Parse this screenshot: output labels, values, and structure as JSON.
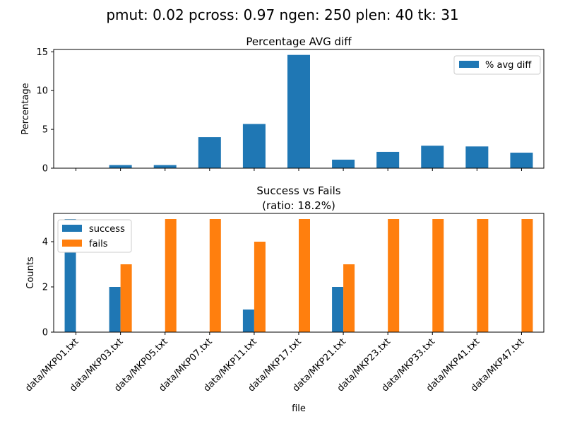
{
  "figure": {
    "suptitle": "pmut: 0.02 pcross: 0.97 ngen: 250 plen: 40 tk: 31"
  },
  "chart_data": [
    {
      "type": "bar",
      "title": "Percentage AVG diff",
      "xlabel": "",
      "ylabel": "Percentage",
      "categories": [
        "data/MKP01.txt",
        "data/MKP03.txt",
        "data/MKP05.txt",
        "data/MKP07.txt",
        "data/MKP11.txt",
        "data/MKP17.txt",
        "data/MKP21.txt",
        "data/MKP23.txt",
        "data/MKP33.txt",
        "data/MKP41.txt",
        "data/MKP47.txt"
      ],
      "series": [
        {
          "name": "% avg diff",
          "color": "#1f77b4",
          "values": [
            0.0,
            0.4,
            0.4,
            4.0,
            5.7,
            14.6,
            1.1,
            2.1,
            2.9,
            2.8,
            2.0
          ]
        }
      ],
      "ylim": [
        0,
        15.3
      ],
      "yticks": [
        "0",
        "5",
        "10",
        "15"
      ],
      "xtick_labels_shown": false,
      "legend": "top-right",
      "grid": false
    },
    {
      "type": "bar",
      "title": "Success vs Fails",
      "subtitle": "(ratio: 18.2%)",
      "xlabel": "file",
      "ylabel": "Counts",
      "categories": [
        "data/MKP01.txt",
        "data/MKP03.txt",
        "data/MKP05.txt",
        "data/MKP07.txt",
        "data/MKP11.txt",
        "data/MKP17.txt",
        "data/MKP21.txt",
        "data/MKP23.txt",
        "data/MKP33.txt",
        "data/MKP41.txt",
        "data/MKP47.txt"
      ],
      "series": [
        {
          "name": "success",
          "color": "#1f77b4",
          "values": [
            5,
            2,
            0,
            0,
            1,
            0,
            2,
            0,
            0,
            0,
            0
          ]
        },
        {
          "name": "fails",
          "color": "#ff7f0e",
          "values": [
            0,
            3,
            5,
            5,
            4,
            5,
            3,
            5,
            5,
            5,
            5
          ]
        }
      ],
      "ylim": [
        0,
        5.25
      ],
      "yticks": [
        "0",
        "2",
        "4"
      ],
      "xtick_labels_shown": true,
      "xtick_rotation": 45,
      "legend": "top-left",
      "grid": false
    }
  ]
}
